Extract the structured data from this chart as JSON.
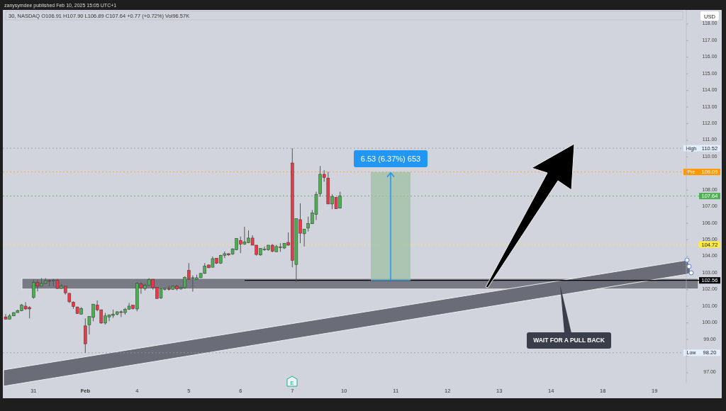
{
  "chart_data": {
    "type": "candlestick",
    "title": "30, NASDAQ  O106.91  H107.90  L106.89  C107.64  +0.77 (+0.72%)  Vol96.57K",
    "subtitle": "zanysymdee published Feb 10, 2025 15:05 UTC+1",
    "ylabel": "USD",
    "categories": [
      null,
      null,
      null,
      null,
      null,
      null,
      null,
      "31",
      null,
      null,
      null,
      null,
      null,
      null,
      null,
      null,
      null,
      null,
      null,
      null,
      "Feb",
      null,
      null,
      null,
      null,
      null,
      null,
      null,
      null,
      null,
      null,
      null,
      null,
      "4",
      null,
      null,
      null,
      null,
      null,
      null,
      null,
      null,
      null,
      null,
      null,
      null,
      "5",
      null,
      null,
      null,
      null,
      null,
      null,
      null,
      null,
      null,
      null,
      null,
      null,
      "6",
      null,
      null,
      null,
      null,
      null,
      null,
      null,
      null,
      null,
      null,
      null,
      null,
      "7",
      null,
      null,
      null,
      null,
      null,
      null,
      null,
      null,
      null,
      null,
      null,
      null,
      "10",
      null,
      null,
      null,
      null,
      null,
      null,
      null,
      null,
      null,
      null,
      null,
      null,
      "11",
      null,
      null,
      null,
      null,
      null,
      null,
      null,
      null,
      null,
      null,
      null,
      null,
      "12",
      null,
      null,
      null,
      null,
      null,
      null,
      null,
      null,
      null,
      null,
      null,
      null,
      "13",
      null,
      null,
      null,
      null,
      null,
      null,
      null,
      null,
      null,
      null,
      null,
      null,
      "14",
      null,
      null,
      null,
      null,
      null,
      null,
      null,
      null,
      null,
      null,
      null,
      null,
      "18",
      null,
      null,
      null,
      null,
      null,
      null,
      null,
      null,
      null,
      null,
      null,
      null,
      "19",
      null,
      null,
      null,
      null,
      null,
      null,
      null
    ],
    "ohlc": [
      [
        100.36,
        100.53,
        100.22,
        100.22
      ],
      [
        100.22,
        100.53,
        100.22,
        100.42
      ],
      [
        100.42,
        100.65,
        100.42,
        100.62
      ],
      [
        100.62,
        100.8,
        100.62,
        100.74
      ],
      [
        100.73,
        101.15,
        100.7,
        101.07
      ],
      [
        101.01,
        101.25,
        100.78,
        100.84
      ],
      [
        100.93,
        101.0,
        100.27,
        100.84
      ],
      [
        101.53,
        102.6,
        101.45,
        102.44
      ],
      [
        102.44,
        102.6,
        101.9,
        102.21
      ],
      [
        102.21,
        102.7,
        102.2,
        102.38
      ],
      [
        102.38,
        102.7,
        102.35,
        102.54
      ],
      [
        102.55,
        102.6,
        102.2,
        102.54
      ],
      [
        102.58,
        102.65,
        102.2,
        102.58
      ],
      [
        102.58,
        102.65,
        102.05,
        102.07
      ],
      [
        102.07,
        102.35,
        102.05,
        102.21
      ],
      [
        102.21,
        102.21,
        101.7,
        101.81
      ],
      [
        101.78,
        101.8,
        101.2,
        101.27
      ],
      [
        101.24,
        101.3,
        100.85,
        100.98
      ],
      [
        100.96,
        100.98,
        100.56,
        100.56
      ],
      [
        100.53,
        100.95,
        100.5,
        100.87
      ],
      [
        99.82,
        100.27,
        98.2,
        98.74
      ],
      [
        99.88,
        100.39,
        99.3,
        100.39
      ],
      [
        100.33,
        101.13,
        100.1,
        101.13
      ],
      [
        101.07,
        101.35,
        100.7,
        100.79
      ],
      [
        100.79,
        100.8,
        99.95,
        99.99
      ],
      [
        99.99,
        100.6,
        99.9,
        100.42
      ],
      [
        100.36,
        100.49,
        100.1,
        100.49
      ],
      [
        100.45,
        100.8,
        100.3,
        100.53
      ],
      [
        100.53,
        100.7,
        100.45,
        100.67
      ],
      [
        100.67,
        100.75,
        100.35,
        100.63
      ],
      [
        100.62,
        100.9,
        100.5,
        100.81
      ],
      [
        100.81,
        101.2,
        100.8,
        101.01
      ],
      [
        101.07,
        101.07,
        100.8,
        100.87
      ],
      [
        100.84,
        102.45,
        100.7,
        102.38
      ],
      [
        102.35,
        102.45,
        101.75,
        102.1
      ],
      [
        102.07,
        102.35,
        101.95,
        102.27
      ],
      [
        102.27,
        102.7,
        102.25,
        102.61
      ],
      [
        102.63,
        102.63,
        102.0,
        102.12
      ],
      [
        102.15,
        102.15,
        101.45,
        101.47
      ],
      [
        101.49,
        102.07,
        101.45,
        102.07
      ],
      [
        102.01,
        102.1,
        101.95,
        102.08
      ],
      [
        102.08,
        102.25,
        101.95,
        102.01
      ],
      [
        102.01,
        102.25,
        102.0,
        102.21
      ],
      [
        102.21,
        102.3,
        101.95,
        102.04
      ],
      [
        102.04,
        102.15,
        102.0,
        102.13
      ],
      [
        102.12,
        102.8,
        102.05,
        102.75
      ],
      [
        103.16,
        103.6,
        102.6,
        102.63
      ],
      [
        102.72,
        102.86,
        101.88,
        102.72
      ],
      [
        102.62,
        102.9,
        102.6,
        102.72
      ],
      [
        102.72,
        103.0,
        102.7,
        102.98
      ],
      [
        102.98,
        103.6,
        102.95,
        103.43
      ],
      [
        103.49,
        103.5,
        103.3,
        103.32
      ],
      [
        103.35,
        104.0,
        103.35,
        103.87
      ],
      [
        103.9,
        103.9,
        103.55,
        103.59
      ],
      [
        103.59,
        104.1,
        103.55,
        104.07
      ],
      [
        104.07,
        104.3,
        103.9,
        104.17
      ],
      [
        104.17,
        104.2,
        104.05,
        104.09
      ],
      [
        104.14,
        104.5,
        104.1,
        104.46
      ],
      [
        104.4,
        105.1,
        104.37,
        105.08
      ],
      [
        104.97,
        105.2,
        104.2,
        104.74
      ],
      [
        104.74,
        105.79,
        104.7,
        104.88
      ],
      [
        104.83,
        105.57,
        104.8,
        105.11
      ],
      [
        105.11,
        105.28,
        104.68,
        104.68
      ],
      [
        104.68,
        104.7,
        104.05,
        104.12
      ],
      [
        104.09,
        104.5,
        104.05,
        104.48
      ],
      [
        104.44,
        104.6,
        104.34,
        104.44
      ],
      [
        104.4,
        104.7,
        104.35,
        104.68
      ],
      [
        104.68,
        104.75,
        104.25,
        104.31
      ],
      [
        104.28,
        104.7,
        104.28,
        104.6
      ],
      [
        104.57,
        104.8,
        104.28,
        104.57
      ],
      [
        104.51,
        104.8,
        104.45,
        104.8
      ],
      [
        104.85,
        105.45,
        104.65,
        104.68
      ],
      [
        109.63,
        110.52,
        103.35,
        103.77
      ],
      [
        103.52,
        106.28,
        102.45,
        106.28
      ],
      [
        106.22,
        107.2,
        104.8,
        105.4
      ],
      [
        105.37,
        105.65,
        104.6,
        105.65
      ],
      [
        105.71,
        106.4,
        105.5,
        105.99
      ],
      [
        105.97,
        106.8,
        105.97,
        106.62
      ],
      [
        106.53,
        107.9,
        106.2,
        107.73
      ],
      [
        107.78,
        109.45,
        107.6,
        108.95
      ],
      [
        108.95,
        109.2,
        108.5,
        108.75
      ],
      [
        108.72,
        109.1,
        107.16,
        107.16
      ],
      [
        107.16,
        107.75,
        106.85,
        107.61
      ],
      [
        107.56,
        107.56,
        106.87,
        106.87
      ],
      [
        106.91,
        107.9,
        106.89,
        107.64
      ],
      null,
      null,
      null,
      null,
      null,
      null,
      null,
      null,
      null,
      null,
      null,
      null,
      null,
      null,
      null,
      null,
      null,
      null,
      null,
      null,
      null,
      null,
      null,
      null,
      null,
      null,
      null,
      null,
      null,
      null,
      null,
      null,
      null,
      null,
      null,
      null,
      null,
      null,
      null,
      null,
      null,
      null,
      null,
      null,
      null,
      null,
      null,
      null,
      null,
      null,
      null,
      null,
      null,
      null,
      null,
      null,
      null,
      null,
      null,
      null,
      null,
      null,
      null,
      null,
      null,
      null,
      null,
      null,
      null,
      null,
      null,
      null,
      null,
      null,
      null,
      null,
      null,
      null,
      null,
      null,
      null,
      null,
      null,
      null,
      null,
      null
    ],
    "colors": [
      "#f23645",
      "#4caf50",
      "#4caf50",
      "#4caf50",
      "#4caf50",
      "#f23645",
      "#f23645",
      "#4caf50",
      "#f23645",
      "#4caf50",
      "#4caf50",
      "#f23645",
      "#4caf50",
      "#f23645",
      "#4caf50",
      "#f23645",
      "#f23645",
      "#f23645",
      "#f23645",
      "#4caf50",
      "#f23645",
      "#4caf50",
      "#4caf50",
      "#f23645",
      "#f23645",
      "#4caf50",
      "#4caf50",
      "#4caf50",
      "#4caf50",
      "#f23645",
      "#4caf50",
      "#4caf50",
      "#f23645",
      "#4caf50",
      "#f23645",
      "#4caf50",
      "#4caf50",
      "#f23645",
      "#f23645",
      "#4caf50",
      "#4caf50",
      "#f23645",
      "#4caf50",
      "#f23645",
      "#4caf50",
      "#4caf50",
      "#f23645",
      "#4caf50",
      "#4caf50",
      "#4caf50",
      "#4caf50",
      "#f23645",
      "#4caf50",
      "#f23645",
      "#4caf50",
      "#4caf50",
      "#f23645",
      "#4caf50",
      "#4caf50",
      "#f23645",
      "#4caf50",
      "#4caf50",
      "#f23645",
      "#f23645",
      "#4caf50",
      "#4caf50",
      "#4caf50",
      "#f23645",
      "#4caf50",
      "#4caf50",
      "#4caf50",
      "#f23645",
      "#f23645",
      "#4caf50",
      "#f23645",
      "#4caf50",
      "#4caf50",
      "#4caf50",
      "#4caf50",
      "#4caf50",
      "#f23645",
      "#f23645",
      "#4caf50",
      "#f23645",
      "#4caf50",
      null,
      null,
      null,
      null,
      null,
      null,
      null,
      null,
      null,
      null,
      null,
      null,
      null,
      null,
      null,
      null,
      null,
      null,
      null,
      null,
      null,
      null,
      null,
      null,
      null,
      null,
      null,
      null,
      null,
      null,
      null,
      null,
      null,
      null,
      null,
      null,
      null,
      null,
      null,
      null,
      null,
      null,
      null,
      null,
      null,
      null,
      null,
      null,
      null,
      null,
      null,
      null,
      null,
      null,
      null,
      null,
      null,
      null,
      null,
      null,
      null,
      null,
      null,
      null,
      null,
      null,
      null,
      null,
      null,
      null,
      null,
      null,
      null,
      null,
      null,
      null,
      null,
      null,
      null,
      null,
      null,
      null,
      null,
      null,
      null,
      null
    ],
    "ylim": [
      96.4,
      118.85
    ],
    "yticks": [
      {
        "value": 97,
        "label": "97.00"
      },
      {
        "value": 98,
        "label": null
      },
      {
        "value": 99,
        "label": "99.00"
      },
      {
        "value": 100,
        "label": "100.00"
      },
      {
        "value": 101,
        "label": "101.00"
      },
      {
        "value": 102,
        "label": "102.00"
      },
      {
        "value": 103,
        "label": "103.00"
      },
      {
        "value": 104,
        "label": "104.00"
      },
      {
        "value": 105,
        "label": "105.00"
      },
      {
        "value": 106,
        "label": "106.00"
      },
      {
        "value": 107,
        "label": "107.00"
      },
      {
        "value": 108,
        "label": "108.00"
      },
      {
        "value": 109,
        "label": null
      },
      {
        "value": 110,
        "label": "110.00"
      },
      {
        "value": 111,
        "label": "111.00"
      },
      {
        "value": 112,
        "label": "112.00"
      },
      {
        "value": 113,
        "label": "113.00"
      },
      {
        "value": 114,
        "label": "114.00"
      },
      {
        "value": 115,
        "label": "115.00"
      },
      {
        "value": 116,
        "label": "116.00"
      },
      {
        "value": 117,
        "label": "117.00"
      },
      {
        "value": 118,
        "label": "118.00"
      }
    ],
    "ref_lines": [
      {
        "axis": "y",
        "value": 110.52,
        "label": "110.52",
        "color": "#9598a1",
        "line_style": "dotted"
      },
      {
        "axis": "y",
        "value": 109.09,
        "label": "109.09",
        "color": "#ff9800",
        "line_style": "dotted"
      },
      {
        "axis": "y",
        "value": 107.64,
        "label": "107.64",
        "color": "#4caf50",
        "line_style": "dotted"
      },
      {
        "axis": "y",
        "value": 104.72,
        "label": "104.72",
        "color": "#ffeb3b",
        "line_style": "dotted"
      },
      {
        "axis": "y",
        "value": 102.56,
        "label": "102.56",
        "color": "#000000",
        "line_style": "solid"
      },
      {
        "axis": "y",
        "value": 98.2,
        "label": "98.20",
        "color": "#9598a1",
        "line_style": "dotted"
      }
    ],
    "bands": [
      {
        "axis": "y",
        "from": 102.04,
        "to": 102.68,
        "color": "#787b86"
      }
    ],
    "annotations": [
      "6.53 (6.37%) 653",
      "WAIT FOR A PULL BACK",
      "E",
      {
        "text": "High",
        "y": 110.52
      },
      {
        "text": "Pre",
        "y": 109.09
      },
      {
        "text": "Low",
        "y": 98.2
      }
    ]
  }
}
